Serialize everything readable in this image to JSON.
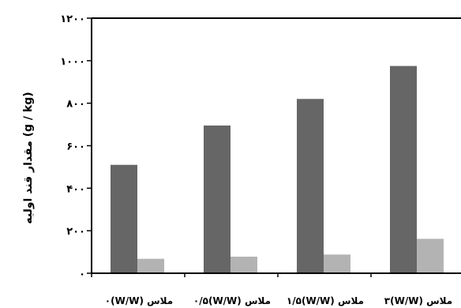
{
  "chart_data": {
    "type": "bar",
    "title": "",
    "xlabel": "",
    "ylabel": "مقدار قند اولیه (g / kg)",
    "ylim": [
      0,
      1200
    ],
    "yticks": [
      0,
      200,
      400,
      600,
      800,
      1000,
      1200
    ],
    "ytick_labels": [
      "۰",
      "۲۰۰",
      "۴۰۰",
      "۶۰۰",
      "۸۰۰",
      "۱۰۰۰",
      "۱۲۰۰"
    ],
    "categories": [
      "۰(W/W) ملاس",
      "۰/۵(W/W) ملاس",
      "۱/۵(W/W) ملاس",
      "۳(W/W) ملاس"
    ],
    "series": [
      {
        "color": "#666666",
        "values": [
          510,
          695,
          820,
          975
        ]
      },
      {
        "color": "#b3b3b3",
        "values": [
          68,
          78,
          88,
          162
        ]
      }
    ],
    "grid": false,
    "legend": "none"
  }
}
